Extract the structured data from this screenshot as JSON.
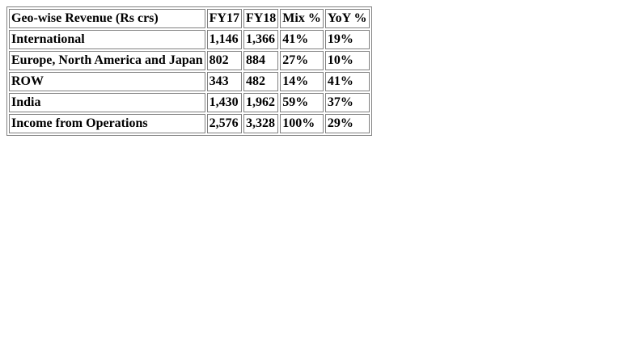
{
  "table": {
    "header": [
      "Geo-wise Revenue (Rs crs)",
      "FY17",
      "FY18",
      "Mix %",
      "YoY %"
    ],
    "rows": [
      [
        "International",
        "1,146",
        "1,366",
        "41%",
        "19%"
      ],
      [
        "Europe, North America and Japan",
        "802",
        "884",
        "27%",
        "10%"
      ],
      [
        "ROW",
        "343",
        "482",
        "14%",
        "41%"
      ],
      [
        "India",
        "1,430",
        "1,962",
        "59%",
        "37%"
      ],
      [
        "Income from Operations",
        "2,576",
        "3,328",
        "100%",
        "29%"
      ]
    ]
  }
}
